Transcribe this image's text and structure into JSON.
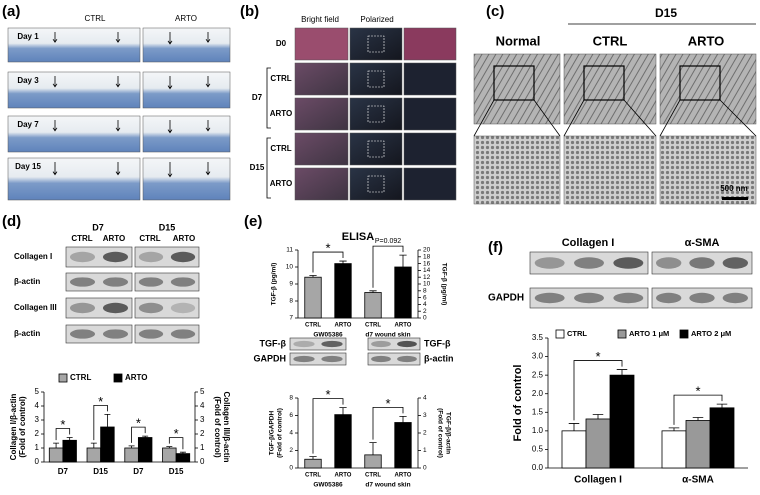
{
  "panel_labels": [
    "(a)",
    "(b)",
    "(c)",
    "(d)",
    "(e)",
    "(f)"
  ],
  "panel_a": {
    "columns": [
      "CTRL",
      "ARTO"
    ],
    "rows": [
      "Day 1",
      "Day 3",
      "Day 7",
      "Day 15"
    ]
  },
  "panel_b": {
    "columns": [
      "Bright field",
      "Polarized"
    ],
    "rows": [
      "D0",
      "CTRL",
      "ARTO",
      "CTRL",
      "ARTO"
    ],
    "groups": [
      "D7",
      "D15"
    ]
  },
  "panel_c": {
    "columns": [
      "Normal",
      "CTRL",
      "ARTO"
    ],
    "group": "D15",
    "scale_bar": "500 nm"
  },
  "panel_d": {
    "columns": [
      "D7",
      "D15"
    ],
    "lanes": [
      "CTRL",
      "ARTO",
      "CTRL",
      "ARTO"
    ],
    "blots": [
      "Collagen I",
      "β-actin",
      "Collagen III",
      "β-actin"
    ]
  },
  "panel_e": {
    "left_blots": [
      "TGF-β",
      "GAPDH"
    ],
    "right_blots": [
      "TGF-β",
      "β-actin"
    ]
  },
  "panel_f": {
    "blots": [
      "Collagen I",
      "α-SMA"
    ],
    "loading": "GAPDH"
  },
  "chart_data": [
    {
      "type": "bar",
      "categories": [
        "D7",
        "D15",
        "D7",
        "D15"
      ],
      "category_axis": [
        "y",
        "y",
        "y2",
        "y2"
      ],
      "series": [
        {
          "name": "CTRL",
          "color": "#a6a6a6",
          "values": [
            1.0,
            1.0,
            1.0,
            1.0
          ],
          "errors": [
            0.35,
            0.35,
            0.15,
            0.1
          ]
        },
        {
          "name": "ARTO",
          "color": "#000000",
          "values": [
            1.55,
            2.5,
            1.75,
            0.6
          ],
          "errors": [
            0.2,
            0.9,
            0.1,
            0.1
          ]
        }
      ],
      "ylabel": [
        "Collagen I/β-actin",
        "(Fold of control)"
      ],
      "y2label": [
        "Collagen III/β-actin",
        "(Fold of control)"
      ],
      "ylim": [
        0,
        5
      ],
      "yticks": [
        0,
        1,
        2,
        3,
        4,
        5
      ],
      "y2lim": [
        0,
        5
      ],
      "y2ticks": [
        0,
        1,
        2,
        3,
        4,
        5
      ],
      "annotations": [
        "*",
        "*",
        "*",
        "*"
      ],
      "legend": "top"
    },
    {
      "type": "bar",
      "title": "ELISA",
      "categories": [
        "CTRL",
        "ARTO",
        "CTRL",
        "ARTO"
      ],
      "groups": [
        "GW05386",
        "d7 wound skin"
      ],
      "category_axis": [
        "y",
        "y",
        "y2",
        "y2"
      ],
      "values": [
        9.4,
        10.2,
        7.5,
        15
      ],
      "errors": [
        0.1,
        0.15,
        0.5,
        3.5
      ],
      "colors": [
        "#a6a6a6",
        "#000000",
        "#a6a6a6",
        "#000000"
      ],
      "ylabel": "TGF-β (pg/ml)",
      "y2label": "TGF-β (pg/ml)",
      "ylim": [
        7,
        11
      ],
      "yticks": [
        7,
        8,
        9,
        10,
        11
      ],
      "y2lim": [
        0,
        20
      ],
      "y2ticks": [
        0,
        2,
        4,
        6,
        8,
        10,
        12,
        14,
        16,
        18,
        20
      ],
      "annotations": [
        "*",
        "P=0.092"
      ]
    },
    {
      "type": "bar",
      "categories": [
        "CTRL",
        "ARTO",
        "CTRL",
        "ARTO"
      ],
      "groups": [
        "GW05386",
        "d7 wound skin"
      ],
      "category_axis": [
        "y",
        "y",
        "y2",
        "y2"
      ],
      "values": [
        1.0,
        6.1,
        0.75,
        2.6
      ],
      "errors": [
        0.3,
        0.8,
        0.7,
        0.35
      ],
      "colors": [
        "#a6a6a6",
        "#000000",
        "#a6a6a6",
        "#000000"
      ],
      "ylabel": [
        "TGF-β/GAPDH",
        "(Fold of control)"
      ],
      "y2label": [
        "TGF-β/β-actin",
        "(Fold of control)"
      ],
      "ylim": [
        0,
        8
      ],
      "yticks": [
        0,
        2,
        4,
        6,
        8
      ],
      "y2lim": [
        0,
        4
      ],
      "y2ticks": [
        0,
        1,
        2,
        3,
        4
      ],
      "annotations": [
        "*",
        "*"
      ]
    },
    {
      "type": "bar",
      "categories": [
        "Collagen I",
        "α-SMA"
      ],
      "series": [
        {
          "name": "CTRL",
          "color": "#ffffff",
          "values": [
            1.0,
            1.0
          ],
          "errors": [
            0.2,
            0.08
          ]
        },
        {
          "name": "ARTO 1 μM",
          "color": "#999999",
          "values": [
            1.32,
            1.28
          ],
          "errors": [
            0.12,
            0.08
          ]
        },
        {
          "name": "ARTO 2 μM",
          "color": "#000000",
          "values": [
            2.5,
            1.62
          ],
          "errors": [
            0.15,
            0.1
          ]
        }
      ],
      "ylabel": "Fold of control",
      "ylim": [
        0,
        3.5
      ],
      "yticks": [
        {
          "value": 0,
          "label": "0.0"
        },
        0.5,
        {
          "value": 1,
          "label": "1.0"
        },
        1.5,
        {
          "value": 2,
          "label": "2.0"
        },
        2.5,
        {
          "value": 3,
          "label": "3.0"
        },
        3.5
      ],
      "annotations": [
        "*",
        "*"
      ],
      "legend": "top"
    }
  ]
}
